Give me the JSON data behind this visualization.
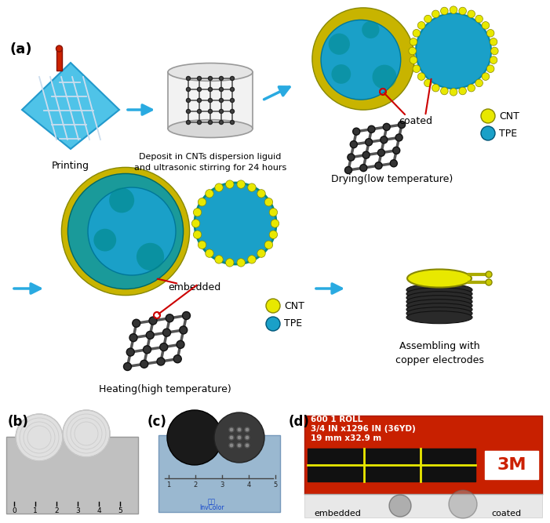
{
  "background_color": "#ffffff",
  "label_a": "(a)",
  "label_b": "(b)",
  "label_c": "(c)",
  "label_d": "(d)",
  "text_printing": "Printing",
  "text_deposit": "Deposit in CNTs dispersion liguid\nand ultrasonic stirring for 24 hours",
  "text_drying": "Drying(low temperature)",
  "text_heating": "Heating(high temperature)",
  "text_assembling": "Assembling with\ncopper electrodes",
  "text_coated": "coated",
  "text_embedded": "embedded",
  "text_CNT": "CNT",
  "text_TPE": "TPE",
  "text_CNT2": "CNT",
  "text_TPE2": "TPE",
  "text_embedded_d": "embedded",
  "text_coated_d": "coated",
  "text_3m1": "600 1 ROLL",
  "text_3m2": "3/4 IN x1296 IN (36YD)",
  "text_3m3": "19 mm x32.9 m",
  "arrow_color": "#29aae1",
  "red_color": "#cc0000",
  "cnt_color": "#e8e800",
  "tpe_color": "#1aa0c8",
  "tpe_dark": "#0088aa",
  "grid_dark": "#555555",
  "fig_width": 7.01,
  "fig_height": 6.67,
  "dpi": 100
}
